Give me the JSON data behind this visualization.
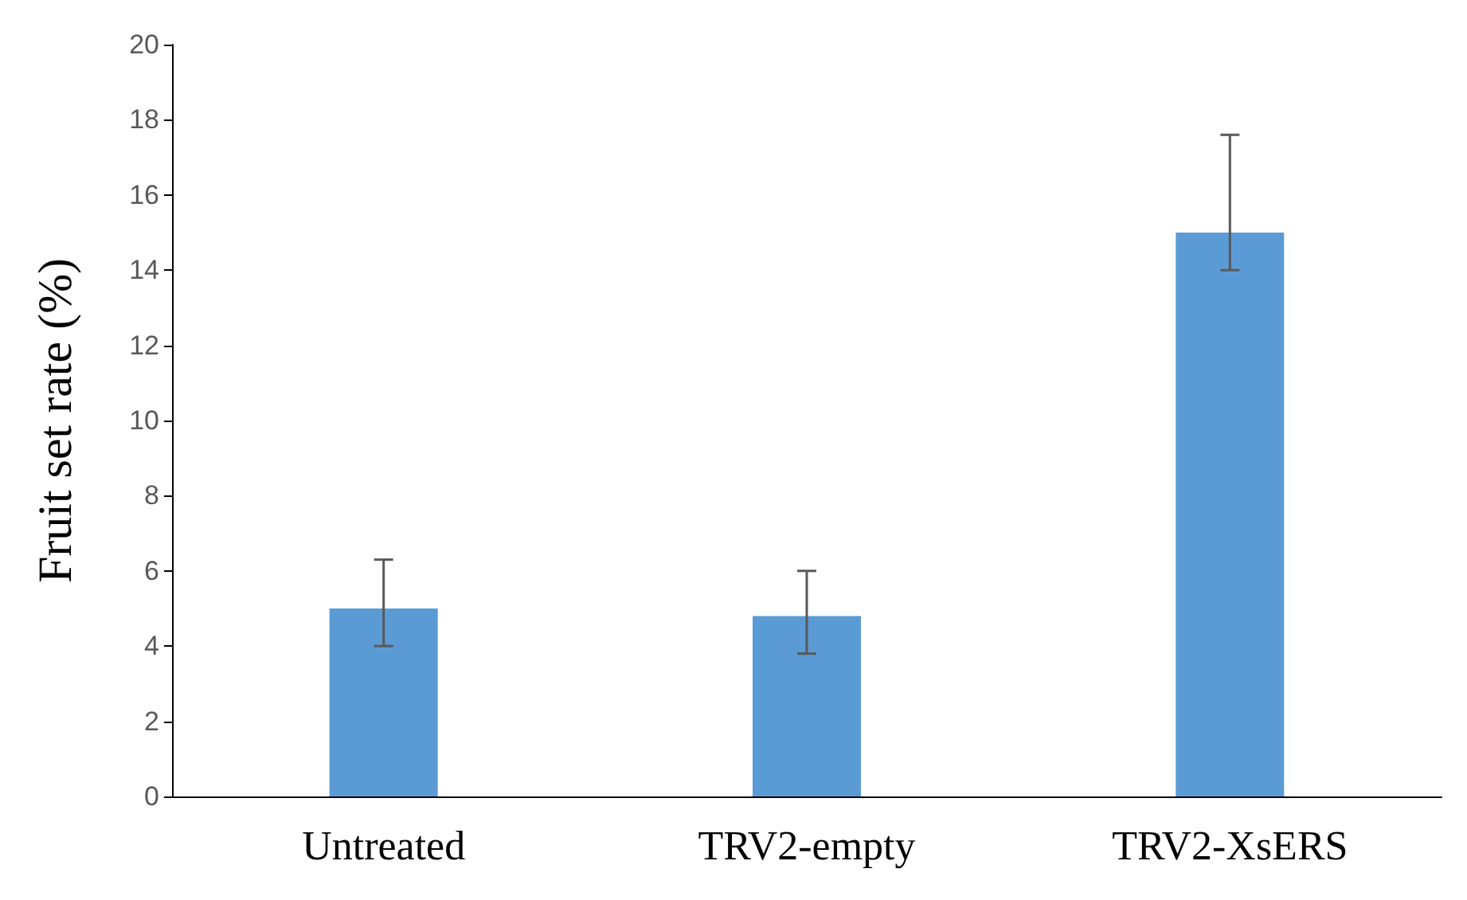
{
  "chart_data": {
    "type": "bar",
    "ylabel": "Fruit set rate (%)",
    "categories": [
      "Untreated",
      "TRV2-empty",
      "TRV2-XsERS"
    ],
    "values": [
      5,
      4.8,
      15
    ],
    "errors": [
      [
        4,
        6.3
      ],
      [
        3.8,
        6
      ],
      [
        14,
        17.6
      ]
    ],
    "color": "#5b9bd5",
    "ylim": [
      0,
      20
    ],
    "yticks": [
      0,
      2,
      4,
      6,
      8,
      10,
      12,
      14,
      16,
      18,
      20
    ],
    "grid": false
  }
}
